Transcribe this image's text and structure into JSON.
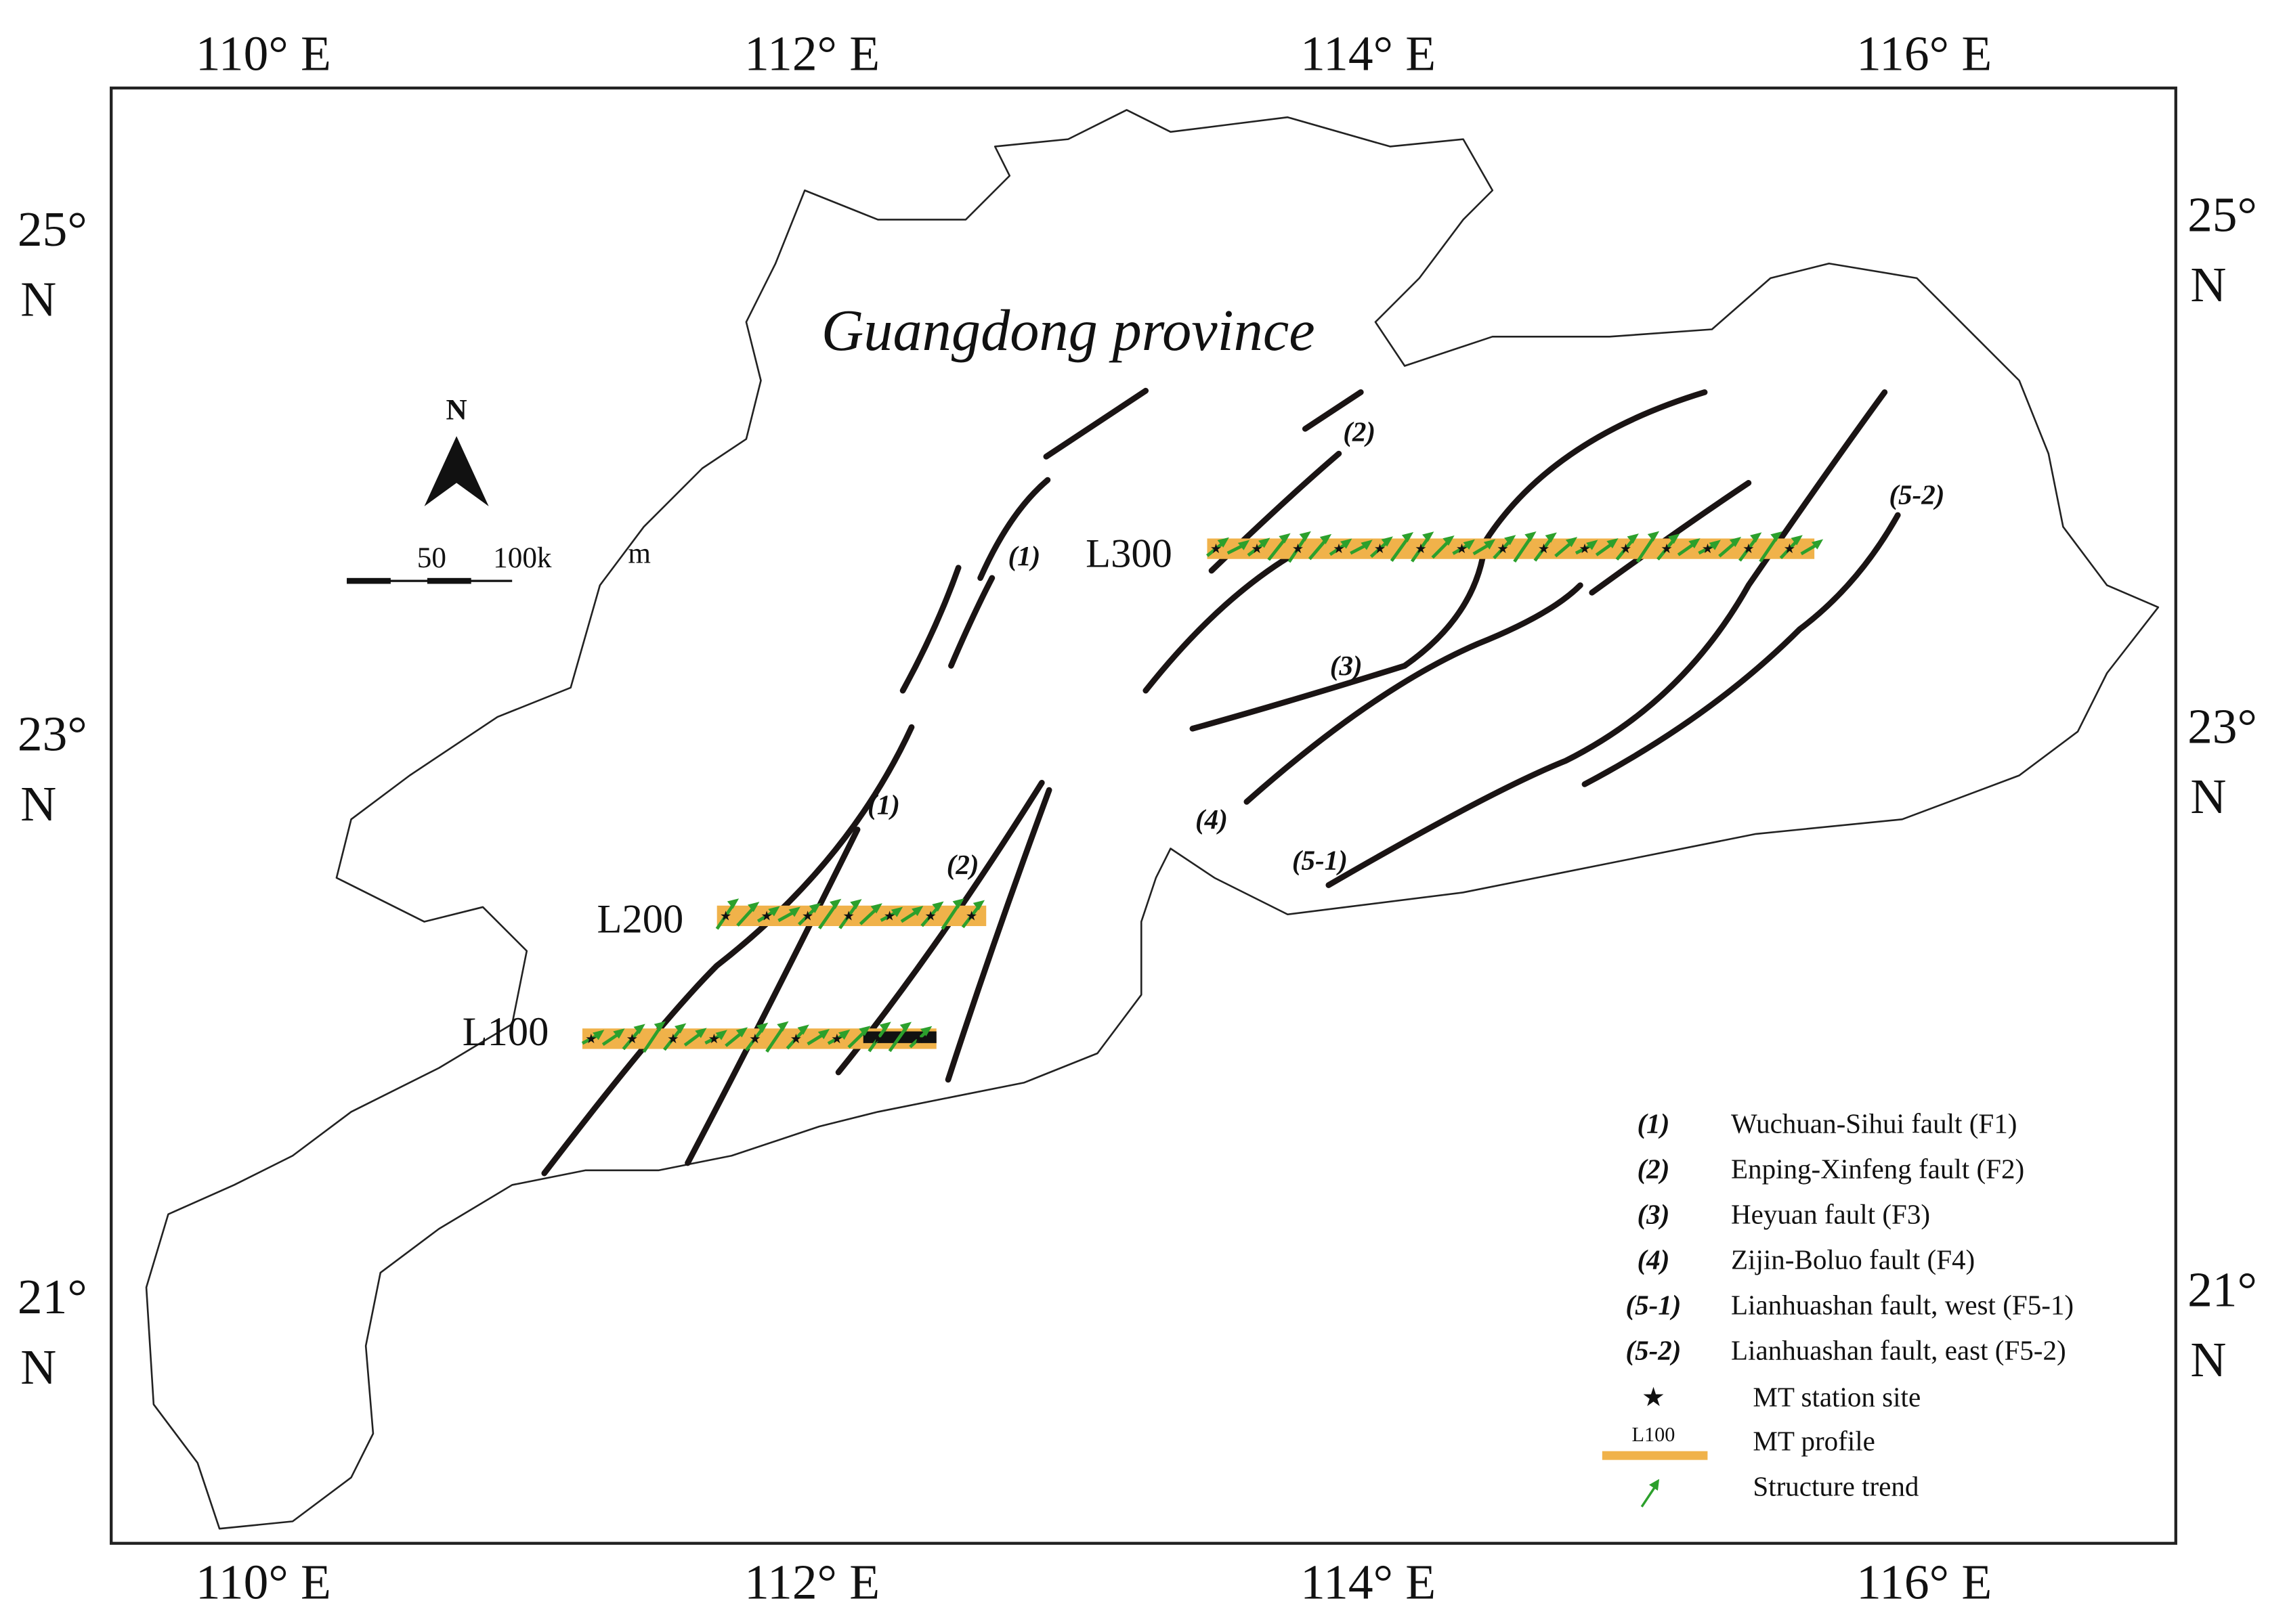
{
  "title": "Guangdong province",
  "axes": {
    "top": [
      "110° E",
      "112° E",
      "114° E",
      "116° E"
    ],
    "bottom": [
      "110° E",
      "112° E",
      "114° E",
      "116° E"
    ],
    "left": [
      {
        "deg": "25°",
        "hemi": "N"
      },
      {
        "deg": "23°",
        "hemi": "N"
      },
      {
        "deg": "21°",
        "hemi": "N"
      }
    ],
    "right": [
      {
        "deg": "25°",
        "hemi": "N"
      },
      {
        "deg": "23°",
        "hemi": "N"
      },
      {
        "deg": "21°",
        "hemi": "N"
      }
    ]
  },
  "north": "N",
  "scale": {
    "first": "50",
    "second": "100k",
    "unit": "m"
  },
  "profiles": [
    "L300",
    "L200",
    "L100"
  ],
  "fault_labels": [
    "(1)",
    "(1)",
    "(2)",
    "(2)",
    "(3)",
    "(4)",
    "(5-1)",
    "(5-2)"
  ],
  "legend": {
    "faults": [
      {
        "symbol": "(1)",
        "text": "Wuchuan-Sihui fault (F1)"
      },
      {
        "symbol": "(2)",
        "text": "Enping-Xinfeng fault (F2)"
      },
      {
        "symbol": "(3)",
        "text": "Heyuan fault (F3)"
      },
      {
        "symbol": "(4)",
        "text": "Zijin-Boluo fault (F4)"
      },
      {
        "symbol": "(5-1)",
        "text": "Lianhuashan fault, west (F5-1)"
      },
      {
        "symbol": "(5-2)",
        "text": "Lianhuashan fault, east (F5-2)"
      }
    ],
    "station": "MT station site",
    "profile_symbol": "L100",
    "profile": "MT profile",
    "trend": "Structure trend"
  }
}
